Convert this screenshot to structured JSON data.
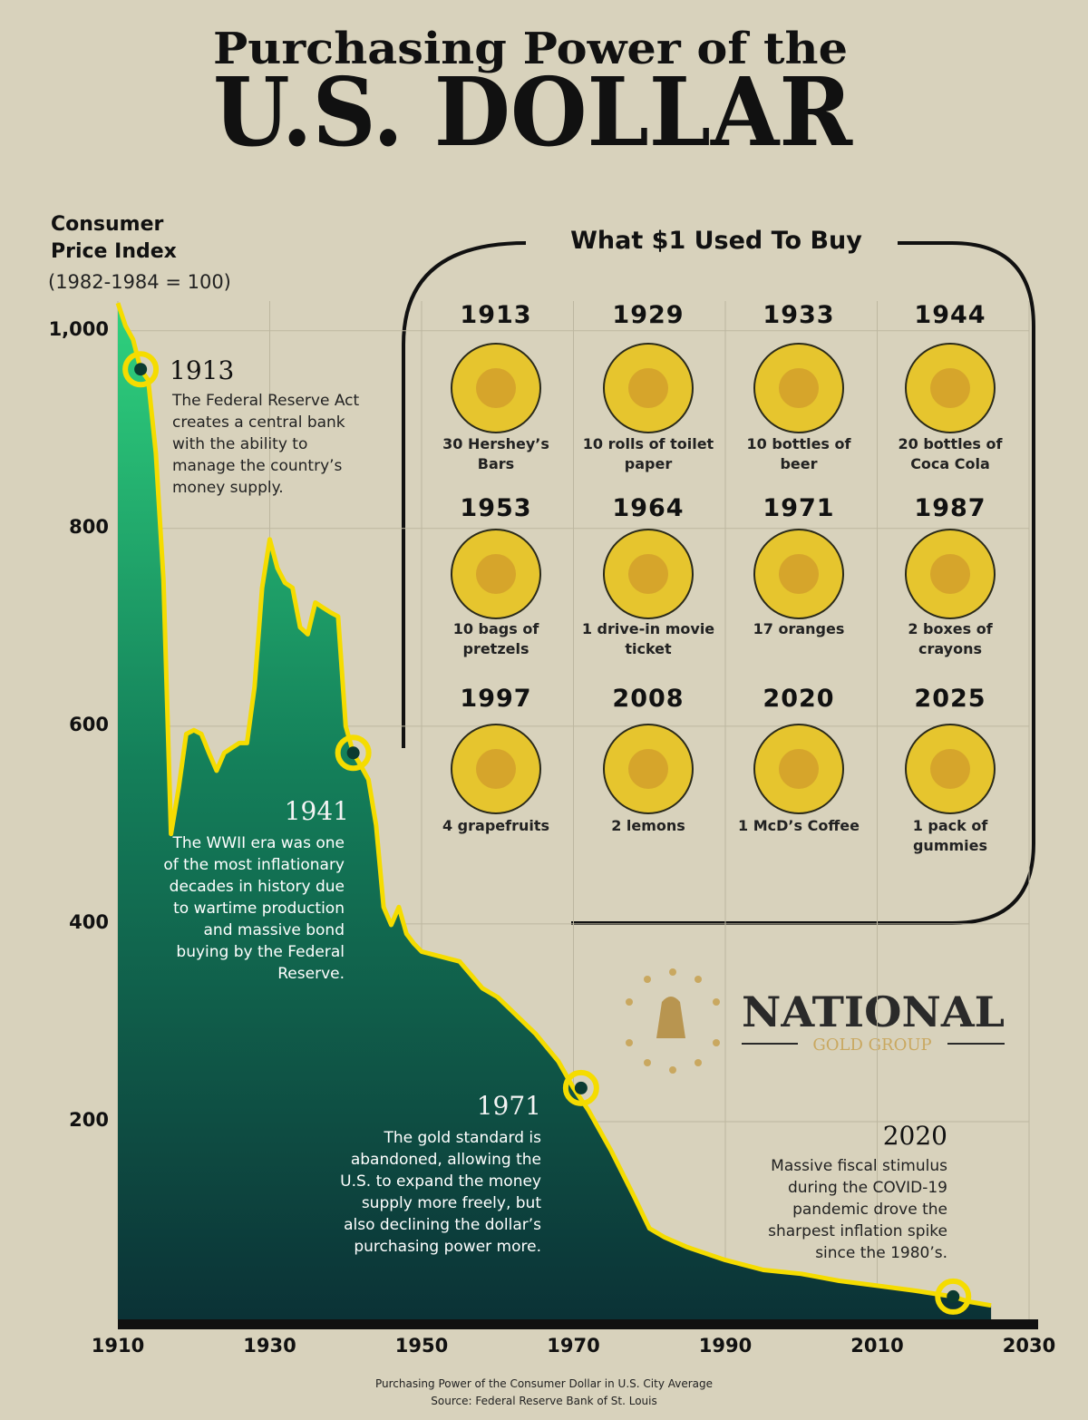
{
  "chart_data": {
    "type": "area",
    "title": [
      "Purchasing Power of the",
      "U.S. DOLLAR"
    ],
    "ylabel": "Consumer Price Index",
    "ylabel_note": "(1982-1984 = 100)",
    "x": [
      1910,
      1911,
      1912,
      1913,
      1914,
      1915,
      1916,
      1917,
      1918,
      1919,
      1920,
      1921,
      1922,
      1923,
      1924,
      1925,
      1926,
      1927,
      1928,
      1929,
      1930,
      1931,
      1932,
      1933,
      1934,
      1935,
      1936,
      1937,
      1938,
      1939,
      1940,
      1941,
      1942,
      1943,
      1944,
      1945,
      1946,
      1947,
      1948,
      1949,
      1950,
      1955,
      1958,
      1960,
      1965,
      1968,
      1970,
      1972,
      1975,
      1978,
      1980,
      1982,
      1985,
      1990,
      1995,
      2000,
      2005,
      2010,
      2015,
      2020,
      2022,
      2025
    ],
    "values": [
      1028,
      1005,
      991,
      961,
      950,
      876,
      748,
      491,
      537,
      592,
      596,
      592,
      573,
      555,
      573,
      578,
      583,
      583,
      640,
      740,
      789,
      760,
      745,
      740,
      700,
      693,
      725,
      720,
      715,
      711,
      600,
      573,
      560,
      546,
      500,
      417,
      399,
      417,
      390,
      380,
      372,
      362,
      335,
      326,
      289,
      261,
      234,
      211,
      170,
      124,
      92,
      83,
      73,
      60,
      50,
      46,
      39,
      34,
      29,
      23,
      18,
      14
    ],
    "color": "#f5dc00",
    "fill_color": "#0f6b4a",
    "xlim": [
      1910,
      2030
    ],
    "xticks": [
      1910,
      1930,
      1950,
      1970,
      1990,
      2010,
      2030
    ],
    "ylim": [
      0,
      1030
    ],
    "yticks": [
      200,
      400,
      600,
      800,
      {
        "value": 1000,
        "label": "1,000"
      }
    ],
    "grid": true,
    "annotations": [
      {
        "x": 1913,
        "text": "The Federal Reserve Act creates a central bank with the ability to manage the country’s money supply."
      },
      {
        "x": 1941,
        "text": "The WWII era was one of the most inflationary decades in history due to wartime production and massive bond buying by the Federal Reserve."
      },
      {
        "x": 1971,
        "text": "The gold standard is abandoned, allowing the U.S. to expand the money supply more freely, but also declining the dollar’s purchasing power more."
      },
      {
        "x": 2020,
        "text": "Massive fiscal stimulus during the COVID-19 pandemic drove the sharpest inflation spike since the 1980’s."
      }
    ],
    "caption": "Purchasing Power of the Consumer Dollar in U.S. City Average",
    "source": "Source: Federal Reserve Bank of St. Louis"
  },
  "panel": {
    "title": "What $1 Used To Buy",
    "items": [
      {
        "year": 1913,
        "label": "30 Hershey’s Bars"
      },
      {
        "year": 1929,
        "label": "10 rolls of toilet paper"
      },
      {
        "year": 1933,
        "label": "10 bottles of beer"
      },
      {
        "year": 1944,
        "label": "20 bottles of Coca Cola"
      },
      {
        "year": 1953,
        "label": "10 bags of pretzels"
      },
      {
        "year": 1964,
        "label": "1 drive-in movie ticket"
      },
      {
        "year": 1971,
        "label": "17 oranges"
      },
      {
        "year": 1987,
        "label": "2 boxes of crayons"
      },
      {
        "year": 1997,
        "label": "4 grapefruits"
      },
      {
        "year": 2008,
        "label": "2 lemons"
      },
      {
        "year": 2020,
        "label": "1 McD’s Coffee"
      },
      {
        "year": 2025,
        "label": "1 pack of gummies"
      }
    ]
  },
  "logo": {
    "name": "NATIONAL",
    "tagline": "GOLD GROUP"
  }
}
